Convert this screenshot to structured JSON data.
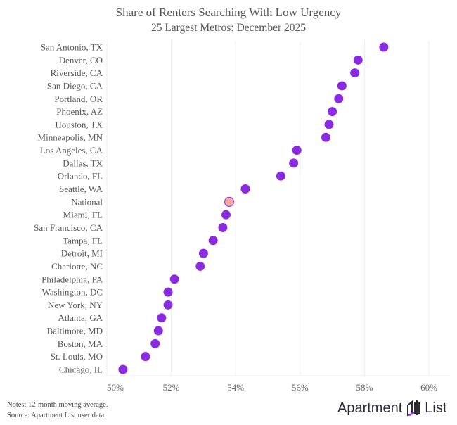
{
  "chart_data": {
    "type": "scatter",
    "title": "Share of Renters Searching With Low Urgency",
    "subtitle": "25 Largest Metros: December 2025",
    "xlim": [
      50,
      60
    ],
    "xticks": [
      "50%",
      "52%",
      "54%",
      "56%",
      "58%",
      "60%"
    ],
    "xtick_values": [
      50,
      52,
      54,
      56,
      58,
      60
    ],
    "grid": "vertical",
    "colors": {
      "metro": "#8a2be2",
      "national": "#f4a7a3",
      "national_outline": "#a040d0"
    },
    "categories": [
      "San Antonio, TX",
      "Denver, CO",
      "Riverside, CA",
      "San Diego, CA",
      "Portland, OR",
      "Phoenix, AZ",
      "Houston, TX",
      "Minneapolis, MN",
      "Los Angeles, CA",
      "Dallas, TX",
      "Orlando, FL",
      "Seattle, WA",
      "National",
      "Miami, FL",
      "San Francisco, CA",
      "Tampa, FL",
      "Detroit, MI",
      "Charlotte, NC",
      "Philadelphia, PA",
      "Washington, DC",
      "New York, NY",
      "Atlanta, GA",
      "Baltimore, MD",
      "Boston, MA",
      "St. Louis, MO",
      "Chicago, IL"
    ],
    "values": [
      58.6,
      57.8,
      57.7,
      57.3,
      57.2,
      57.0,
      56.9,
      56.8,
      55.9,
      55.8,
      55.4,
      54.3,
      53.8,
      53.7,
      53.6,
      53.3,
      53.0,
      52.9,
      52.1,
      51.9,
      51.9,
      51.7,
      51.6,
      51.5,
      51.2,
      50.5
    ],
    "highlight": "National"
  },
  "footer": {
    "notes": "Notes: 12-month moving average.",
    "source": "Source: Apartment List user data.",
    "logo_left": "Apartment",
    "logo_right": "List"
  }
}
